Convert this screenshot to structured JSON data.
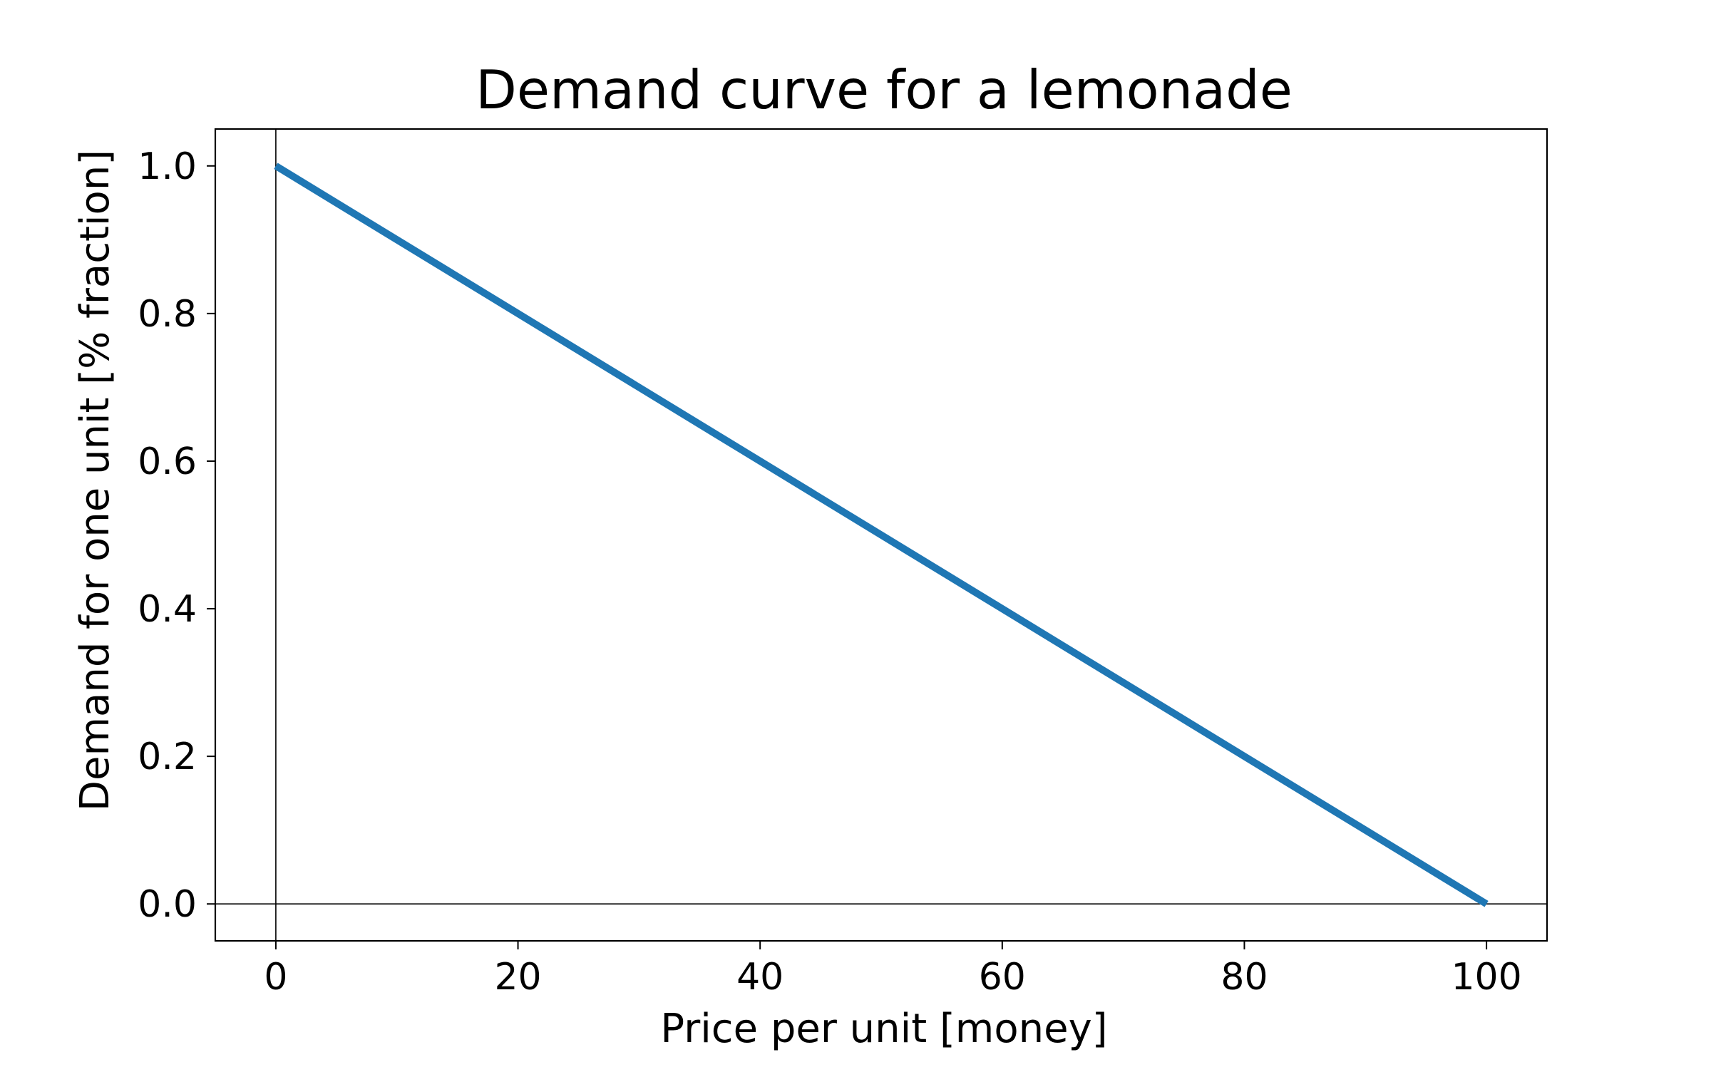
{
  "chart_data": {
    "type": "line",
    "title": "Demand curve for a lemonade",
    "xlabel": "Price per unit [money]",
    "ylabel": "Demand for one unit [% fraction]",
    "xlim": [
      -5,
      105
    ],
    "ylim": [
      -0.05,
      1.05
    ],
    "xticks": [
      0,
      20,
      40,
      60,
      80,
      100
    ],
    "yticks": [
      0.0,
      0.2,
      0.4,
      0.6,
      0.8,
      1.0
    ],
    "xtick_labels": [
      "0",
      "20",
      "40",
      "60",
      "80",
      "100"
    ],
    "ytick_labels": [
      "0.0",
      "0.2",
      "0.4",
      "0.6",
      "0.8",
      "1.0"
    ],
    "grid": false,
    "reference_lines": {
      "x": 0,
      "y": 0
    },
    "series": [
      {
        "color": "#1f77b4",
        "x": [
          0,
          100
        ],
        "y": [
          1.0,
          0.0
        ]
      }
    ]
  }
}
